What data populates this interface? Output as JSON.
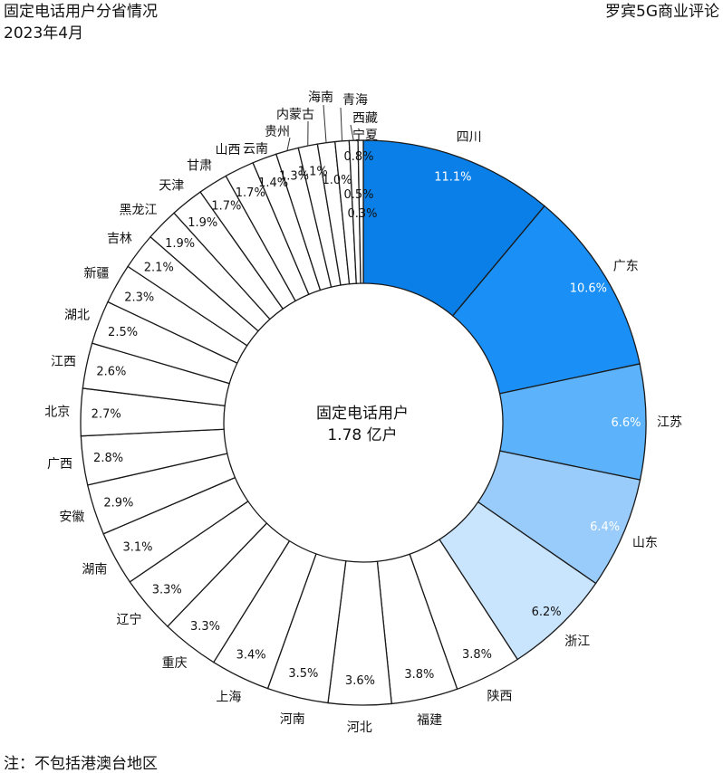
{
  "header": {
    "title": "固定电话用户分省情况",
    "subtitle": "2023年4月",
    "source": "罗宾5G商业评论"
  },
  "center": {
    "line1": "固定电话用户",
    "line2": "1.78 亿户"
  },
  "note": "注：不包括港澳台地区",
  "colors": {
    "sichuan": "#0a7fe8",
    "guangdong": "#1a8ff5",
    "jiangsu": "#5cb3fb",
    "shandong": "#99ccfa",
    "zhejiang": "#c9e4fd",
    "other": "#ffffff",
    "stroke": "#1a1a1a"
  },
  "chart_data": {
    "type": "donut",
    "unit": "%",
    "categories": [
      "四川",
      "广东",
      "江苏",
      "山东",
      "浙江",
      "陕西",
      "福建",
      "河北",
      "河南",
      "上海",
      "重庆",
      "辽宁",
      "湖南",
      "安徽",
      "广西",
      "北京",
      "江西",
      "湖北",
      "新疆",
      "吉林",
      "黑龙江",
      "天津",
      "甘肃",
      "山西",
      "云南",
      "贵州",
      "内蒙古",
      "海南",
      "青海",
      "西藏",
      "宁夏"
    ],
    "values": [
      11.1,
      10.6,
      6.6,
      6.4,
      6.2,
      3.8,
      3.8,
      3.6,
      3.5,
      3.4,
      3.3,
      3.3,
      3.1,
      2.9,
      2.8,
      2.7,
      2.6,
      2.5,
      2.3,
      2.1,
      1.9,
      1.9,
      1.7,
      1.7,
      1.4,
      1.3,
      1.1,
      1.0,
      0.8,
      0.5,
      0.3
    ],
    "value_labels": [
      "11.1%",
      "10.6%",
      "6.6%",
      "6.4%",
      "6.2%",
      "3.8%",
      "3.8%",
      "3.6%",
      "3.5%",
      "3.4%",
      "3.3%",
      "3.3%",
      "3.1%",
      "2.9%",
      "2.8%",
      "2.7%",
      "2.6%",
      "2.5%",
      "2.3%",
      "2.1%",
      "1.9%",
      "1.9%",
      "1.7%",
      "1.7%",
      "1.4%",
      "1.3%",
      "1.1%",
      "1.0%",
      "0.8%",
      "0.5%",
      "0.3%"
    ],
    "total": "1.78 亿户"
  }
}
